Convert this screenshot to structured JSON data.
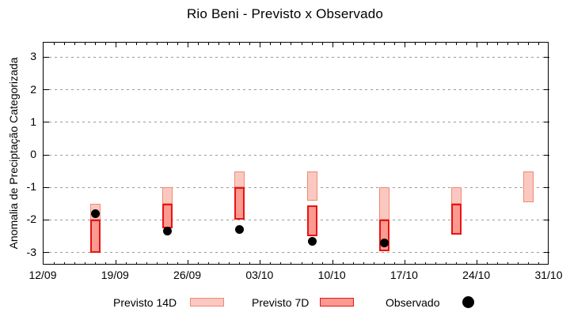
{
  "title": "Rio Beni - Previsto x Observado",
  "y_axis": {
    "label": "Anomalia de Preciptação Categorizada",
    "ticks": [
      3,
      2,
      1,
      0,
      -1,
      -2,
      -3
    ],
    "range": [
      -3.45,
      3.45
    ]
  },
  "x_axis": {
    "tick_labels": [
      "12/09",
      "19/09",
      "26/09",
      "03/10",
      "10/10",
      "17/10",
      "24/10",
      "31/10"
    ],
    "span_days": 49,
    "minor_tick_interval_days": 1
  },
  "colors": {
    "previsto14d_fill": "#fac8c1",
    "previsto14d_border": "#f08a70",
    "previsto7d_fill": "#fb9a90",
    "previsto7d_border": "#e81414",
    "observado": "#000000",
    "grid": "#999999",
    "axis": "#000000"
  },
  "chart_data": {
    "type": "bar",
    "subtype": "floating-range-bars-with-scatter",
    "title": "Rio Beni - Previsto x Observado",
    "xlabel": "",
    "ylabel": "Anomalia de Preciptação Categorizada",
    "ylim": [
      -3.45,
      3.45
    ],
    "x_start": "12/09",
    "x_end": "31/10",
    "grid": "horizontal-dashed",
    "legend_position": "bottom",
    "series": [
      {
        "name": "Previsto 14D",
        "type": "range_bar",
        "fill": "#fac8c1",
        "border": "#f08a70",
        "points": [
          {
            "date": "17/09",
            "from": -1.5,
            "to": -2.0
          },
          {
            "date": "24/09",
            "from": -1.0,
            "to": -1.5
          },
          {
            "date": "01/10",
            "from": -0.5,
            "to": -1.0
          },
          {
            "date": "08/10",
            "from": -0.5,
            "to": -1.4
          },
          {
            "date": "15/10",
            "from": -1.0,
            "to": -2.0
          },
          {
            "date": "22/10",
            "from": -1.0,
            "to": -1.5
          },
          {
            "date": "29/10",
            "from": -0.5,
            "to": -1.45
          }
        ]
      },
      {
        "name": "Previsto 7D",
        "type": "range_bar",
        "fill": "#fb9a90",
        "border": "#e81414",
        "points": [
          {
            "date": "17/09",
            "from": -2.0,
            "to": -3.0
          },
          {
            "date": "24/09",
            "from": -1.5,
            "to": -2.25
          },
          {
            "date": "01/10",
            "from": -1.0,
            "to": -2.0
          },
          {
            "date": "08/10",
            "from": -1.55,
            "to": -2.5
          },
          {
            "date": "15/10",
            "from": -2.0,
            "to": -2.95
          },
          {
            "date": "22/10",
            "from": -1.5,
            "to": -2.45
          }
        ]
      },
      {
        "name": "Observado",
        "type": "scatter",
        "fill": "#000000",
        "points": [
          {
            "date": "17/09",
            "value": -1.8
          },
          {
            "date": "24/09",
            "value": -2.35
          },
          {
            "date": "01/10",
            "value": -2.3
          },
          {
            "date": "08/10",
            "value": -2.65
          },
          {
            "date": "15/10",
            "value": -2.7
          }
        ]
      }
    ]
  },
  "legend": {
    "entries": [
      {
        "label": "Previsto 14D",
        "swatch": "light-pink-bar"
      },
      {
        "label": "Previsto 7D",
        "swatch": "red-bar"
      },
      {
        "label": "Observado",
        "swatch": "black-dot"
      }
    ]
  }
}
